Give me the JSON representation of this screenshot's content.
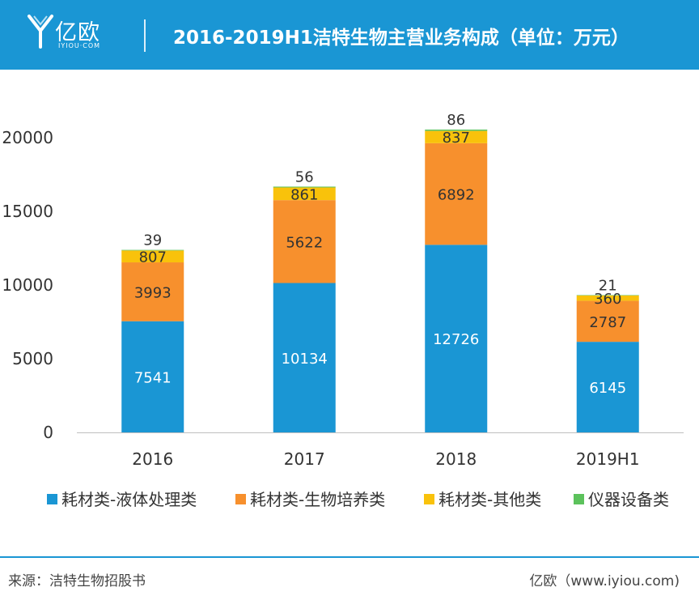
{
  "header": {
    "logo_text": "亿欧",
    "logo_sub": "IYIOU·COM",
    "title": "2016-2019H1洁特生物主营业务构成（单位：万元）"
  },
  "footer": {
    "source": "来源：洁特生物招股书",
    "credit": "亿欧（www.iyiou.com)"
  },
  "colors": {
    "header": "#1a96d4",
    "series": [
      "#1a96d4",
      "#f7902d",
      "#f9c20b",
      "#5cc25c"
    ]
  },
  "chart_data": {
    "type": "bar",
    "stacked": true,
    "categories": [
      "2016",
      "2017",
      "2018",
      "2019H1"
    ],
    "series": [
      {
        "name": "耗材类-液体处理类",
        "values": [
          7541,
          10134,
          12726,
          6145
        ]
      },
      {
        "name": "耗材类-生物培养类",
        "values": [
          3993,
          5622,
          6892,
          2787
        ]
      },
      {
        "name": "耗材类-其他类",
        "values": [
          807,
          861,
          837,
          360
        ]
      },
      {
        "name": "仪器设备类",
        "values": [
          39,
          56,
          86,
          21
        ]
      }
    ],
    "y_ticks": [
      "0",
      "5000",
      "10000",
      "15000",
      "20000"
    ],
    "ylim": [
      0,
      22000
    ],
    "grid": false,
    "legend_position": "bottom"
  }
}
